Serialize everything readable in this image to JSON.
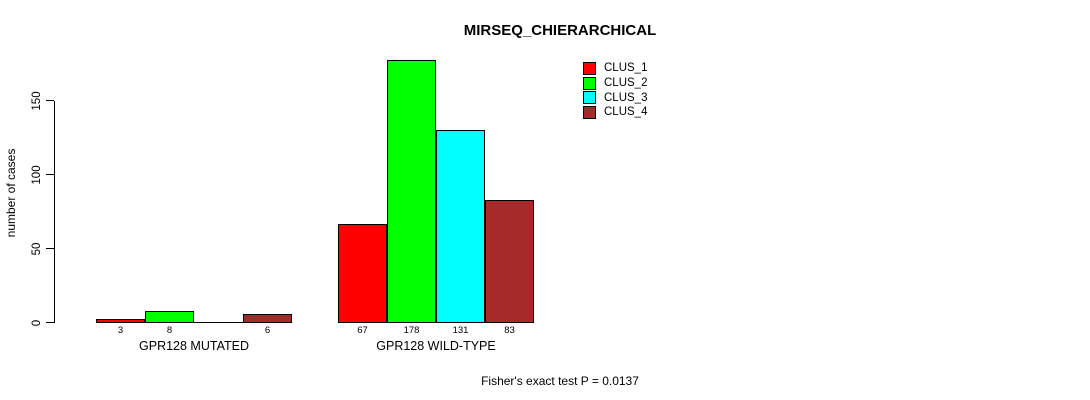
{
  "chart_data": {
    "type": "bar",
    "title": "MIRSEQ_CHIERARCHICAL",
    "ylabel": "number of cases",
    "xlabel": "",
    "yticks": [
      0,
      50,
      100,
      150
    ],
    "ylim": [
      0,
      178
    ],
    "grid": false,
    "legend_position": "inside-top-center",
    "series": [
      {
        "name": "CLUS_1",
        "color": "#ff0000"
      },
      {
        "name": "CLUS_2",
        "color": "#00ff00"
      },
      {
        "name": "CLUS_3",
        "color": "#00ffff"
      },
      {
        "name": "CLUS_4",
        "color": "#a52a2a"
      }
    ],
    "groups": [
      {
        "label": "GPR128 MUTATED",
        "values": [
          3,
          8,
          0,
          6
        ],
        "bar_labels": [
          "3",
          "8",
          "",
          "6"
        ]
      },
      {
        "label": "GPR128 WILD-TYPE",
        "values": [
          67,
          178,
          131,
          83
        ],
        "bar_labels": [
          "67",
          "178",
          "131",
          "83"
        ]
      }
    ],
    "annotation": "Fisher's exact test P = 0.0137",
    "axis_color": "#000000",
    "bar_border_color": "#000000"
  }
}
